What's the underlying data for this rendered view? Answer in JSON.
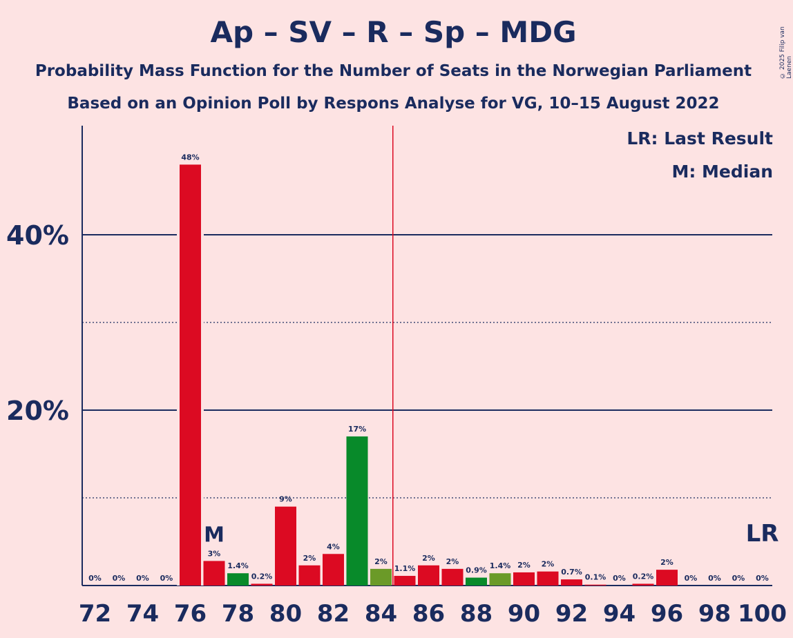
{
  "title": "Ap – SV – R – Sp – MDG",
  "subtitle": "Probability Mass Function for the Number of Seats in the Norwegian Parliament",
  "subtitle2": "Based on an Opinion Poll by Respons Analyse for VG, 10–15 August 2022",
  "copyright": "© 2025 Filip van Laenen",
  "legend": {
    "last_result": "LR: Last Result",
    "median": "M: Median"
  },
  "colors": {
    "background": "#fde3e3",
    "text": "#1a2b5e",
    "red": "#dc0a22",
    "green": "#088a2a",
    "olive": "#6b9a28",
    "lr_line": "#dc0a22"
  },
  "chart_data": {
    "type": "bar",
    "x": [
      72,
      73,
      74,
      75,
      76,
      77,
      78,
      79,
      80,
      81,
      82,
      83,
      84,
      85,
      86,
      87,
      88,
      89,
      90,
      91,
      92,
      93,
      94,
      95,
      96,
      97,
      98,
      99,
      100
    ],
    "values": [
      0,
      0,
      0,
      0,
      48,
      2.8,
      1.4,
      0.2,
      9,
      2.3,
      3.6,
      17,
      1.9,
      1.1,
      2.3,
      1.9,
      0.9,
      1.4,
      1.5,
      1.6,
      0.7,
      0.1,
      0,
      0.2,
      1.8,
      0,
      0,
      0,
      0
    ],
    "labels": [
      "0%",
      "0%",
      "0%",
      "0%",
      "48%",
      "3%",
      "1.4%",
      "0.2%",
      "9%",
      "2%",
      "4%",
      "17%",
      "2%",
      "1.1%",
      "2%",
      "2%",
      "0.9%",
      "1.4%",
      "2%",
      "2%",
      "0.7%",
      "0.1%",
      "0%",
      "0.2%",
      "2%",
      "0%",
      "0%",
      "0%",
      "0%"
    ],
    "bar_colors": [
      "red",
      "red",
      "red",
      "red",
      "red",
      "red",
      "green",
      "red",
      "red",
      "red",
      "red",
      "green",
      "olive",
      "red",
      "red",
      "red",
      "green",
      "olive",
      "red",
      "red",
      "red",
      "red",
      "red",
      "red",
      "red",
      "red",
      "red",
      "red",
      "red"
    ],
    "xticks": [
      "72",
      "74",
      "76",
      "78",
      "80",
      "82",
      "84",
      "86",
      "88",
      "90",
      "92",
      "94",
      "96",
      "98",
      "100"
    ],
    "yticks": [
      "20%",
      "40%"
    ],
    "ylim": [
      0,
      52
    ],
    "median": 77,
    "median_label": "M",
    "last_result": 100,
    "last_result_label": "LR",
    "lr_line_x": 84.5,
    "grid": true
  }
}
